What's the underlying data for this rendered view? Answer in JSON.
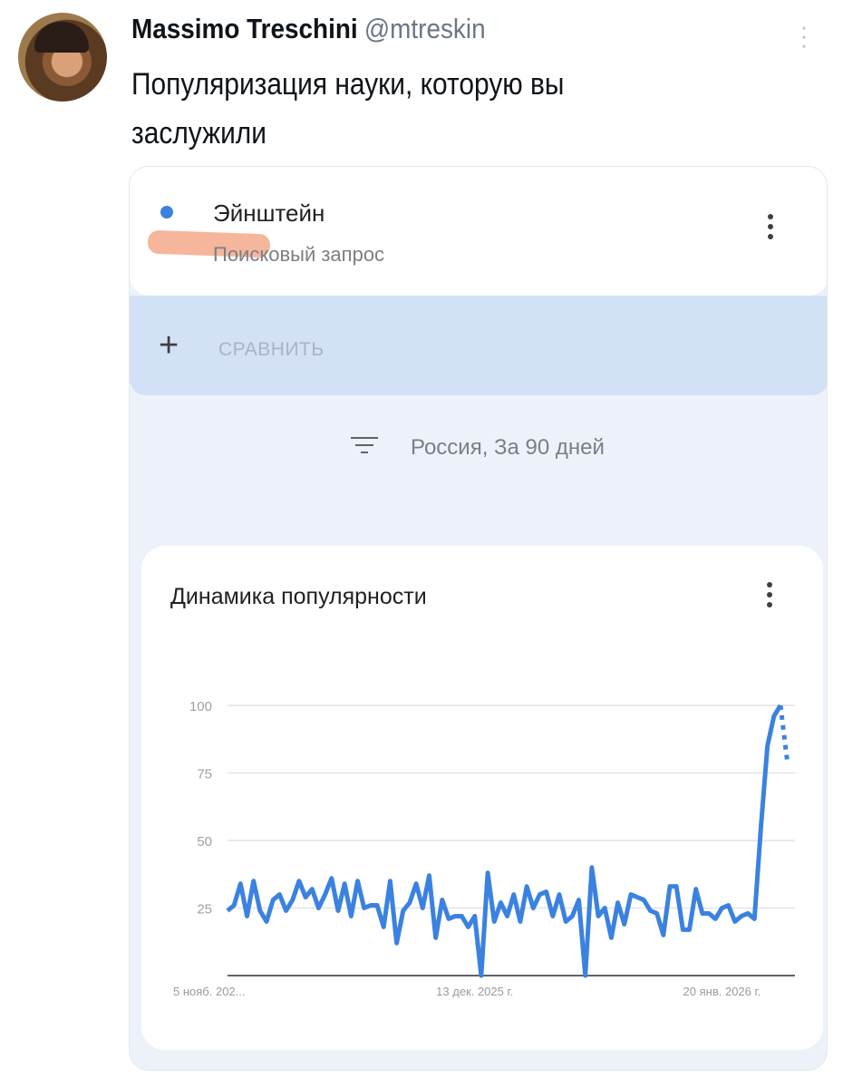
{
  "tweet": {
    "author_name": "Massimo Treschini",
    "author_handle": "@mtreskin",
    "text": "Популяризация науки, которую вы заслужили"
  },
  "trends": {
    "term": "Эйнштейн",
    "term_type": "Поисковый запрос",
    "term_color": "#3b82e0",
    "compare_label": "СРАВНИТЬ",
    "filter_text": "Россия, За 90 дней",
    "chart_title": "Динамика популярности"
  },
  "chart_data": {
    "type": "line",
    "title": "Динамика популярности",
    "ylim": [
      0,
      100
    ],
    "yticks": [
      "100",
      "75",
      "50",
      "25"
    ],
    "xtick_labels": [
      "5 нояб. 202...",
      "13 дек. 2025 г.",
      "20 янв. 2026 г."
    ],
    "xtick_positions": [
      0,
      38,
      76
    ],
    "grid": true,
    "series": [
      {
        "color": "#3b82e0",
        "values": [
          24,
          26,
          34,
          22,
          35,
          24,
          20,
          28,
          30,
          24,
          28,
          35,
          29,
          32,
          25,
          30,
          36,
          24,
          34,
          22,
          35,
          25,
          26,
          26,
          18,
          35,
          12,
          24,
          27,
          34,
          25,
          37,
          14,
          28,
          21,
          22,
          22,
          18,
          22,
          0,
          38,
          20,
          27,
          22,
          30,
          20,
          33,
          25,
          30,
          31,
          22,
          30,
          20,
          22,
          28,
          0,
          40,
          22,
          25,
          14,
          27,
          19,
          30,
          29,
          28,
          24,
          23,
          15,
          33,
          33,
          17,
          17,
          32,
          23,
          23,
          21,
          25,
          26,
          20,
          22,
          23,
          21,
          55,
          85,
          96,
          100
        ],
        "partial_last_value": 78
      }
    ]
  }
}
